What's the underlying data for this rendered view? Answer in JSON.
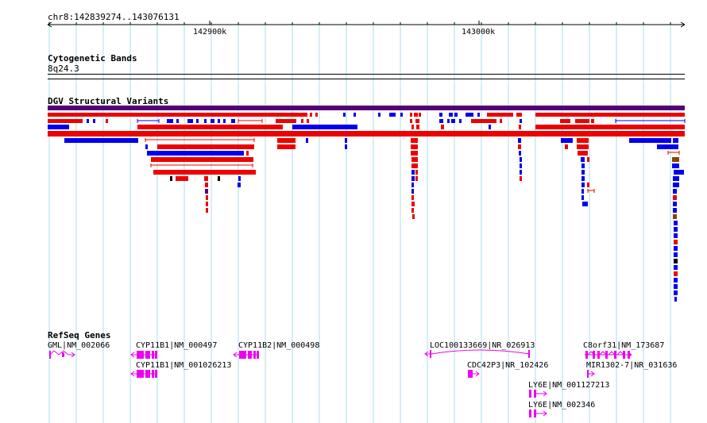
{
  "browser": {
    "landmark": "chr8:142839274..143076131",
    "ruler_ticks": [
      "142900k",
      "143000k"
    ]
  },
  "tracks": {
    "cytoband": {
      "title": "Cytogenetic Bands",
      "band": "8q24.3"
    },
    "dgv": {
      "title": "DGV Structural Variants",
      "colors": {
        "gain": "#ee0000",
        "loss": "#0000ee",
        "both": "#550077",
        "other": "#884400"
      }
    },
    "refseq": {
      "title": "RefSeq Genes",
      "genes": [
        {
          "label": "GML|NM_002066"
        },
        {
          "label": "CYP11B1|NM_000497"
        },
        {
          "label": "CYP11B2|NM_000498"
        },
        {
          "label": "CYP11B1|NM_001026213"
        },
        {
          "label": "LOC100133669|NR_026913"
        },
        {
          "label": "CDC42P3|NR_102426"
        },
        {
          "label": "C8orf31|NM_173687"
        },
        {
          "label": "MIR1302-7|NR_031636"
        },
        {
          "label": "LY6E|NM_001127213"
        },
        {
          "label": "LY6E|NM_002346"
        }
      ],
      "color": "#ee00ee"
    }
  }
}
